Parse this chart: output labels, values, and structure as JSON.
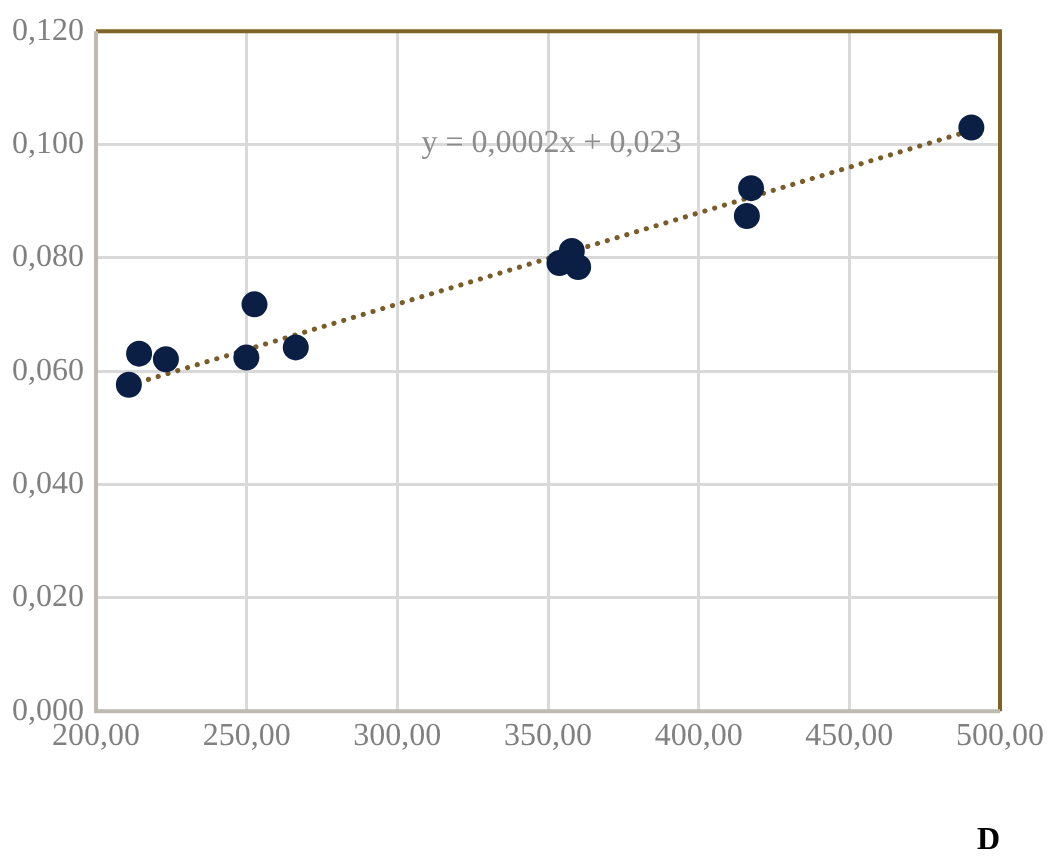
{
  "chart_data": {
    "type": "scatter",
    "xlabel": "D",
    "marker": "circle",
    "grid": true,
    "series": [
      {
        "color": "#0b1f45",
        "x": [
          210.9,
          214.3,
          223.2,
          249.9,
          252.6,
          266.3,
          353.8,
          357.9,
          360.0,
          416.0,
          417.4,
          490.5
        ],
        "values": [
          0.0576,
          0.0631,
          0.0621,
          0.0624,
          0.0718,
          0.0642,
          0.0791,
          0.0812,
          0.0784,
          0.0874,
          0.0923,
          0.103
        ]
      },
      {
        "type": "line",
        "color": "#7a5c28",
        "line_style": "dotted",
        "marker": "none",
        "x": [
          210.9,
          490.5
        ],
        "values": [
          0.0575,
          0.1025
        ]
      }
    ],
    "annotations": [
      "y = 0,0002x + 0,023"
    ],
    "xlim": [
      200,
      500
    ],
    "xticks": [
      {
        "value": 200,
        "label": "200,00"
      },
      {
        "value": 250,
        "label": "250,00"
      },
      {
        "value": 300,
        "label": "300,00"
      },
      {
        "value": 350,
        "label": "350,00"
      },
      {
        "value": 400,
        "label": "400,00"
      },
      {
        "value": 450,
        "label": "450,00"
      },
      {
        "value": 500,
        "label": "500,00"
      }
    ],
    "ylim": [
      0,
      0.12
    ],
    "yticks": [
      {
        "value": 0,
        "label": "0,000"
      },
      {
        "value": 0.02,
        "label": "0,020"
      },
      {
        "value": 0.04,
        "label": "0,040"
      },
      {
        "value": 0.06,
        "label": "0,060"
      },
      {
        "value": 0.08,
        "label": "0,080"
      },
      {
        "value": 0.1,
        "label": "0,100"
      },
      {
        "value": 0.12,
        "label": "0,120"
      }
    ]
  }
}
